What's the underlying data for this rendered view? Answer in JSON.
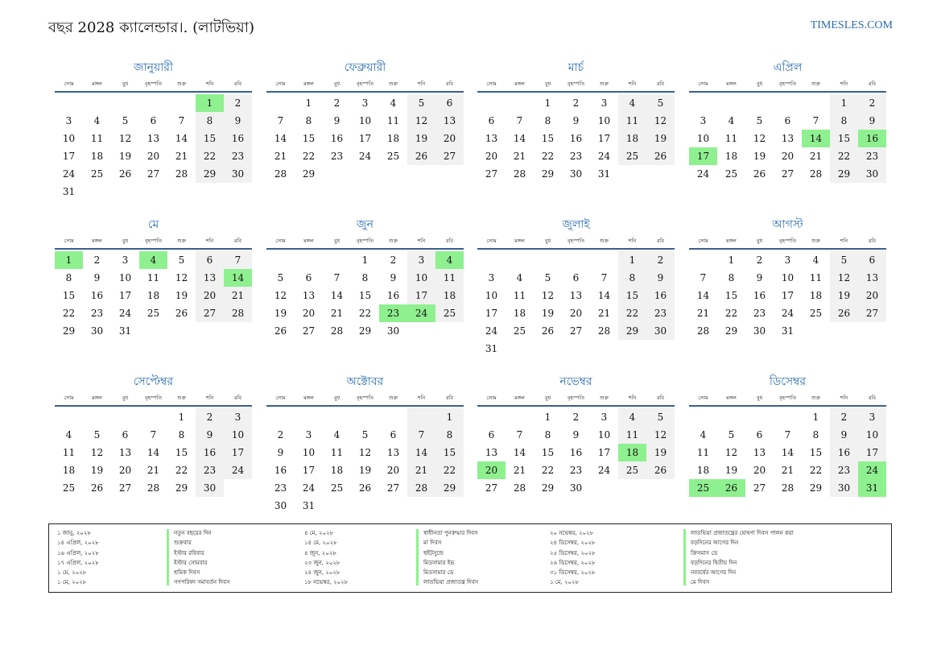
{
  "header": {
    "title": "বছর 2028 ক্যালেন্ডার।. (লাটভিয়া)",
    "site": "TIMESLES.COM"
  },
  "weekdays": [
    "সোম",
    "মঙ্গল",
    "বুধ",
    "বৃহস্পতি",
    "শুক্র",
    "শনি",
    "রবি"
  ],
  "months": [
    {
      "name": "জানুয়ারী",
      "offset": 5,
      "days": 31,
      "holidays": [
        1
      ]
    },
    {
      "name": "ফেব্রুয়ারী",
      "offset": 1,
      "days": 29,
      "holidays": []
    },
    {
      "name": "মার্চ",
      "offset": 2,
      "days": 31,
      "holidays": []
    },
    {
      "name": "এপ্রিল",
      "offset": 5,
      "days": 30,
      "holidays": [
        14,
        16,
        17
      ]
    },
    {
      "name": "মে",
      "offset": 0,
      "days": 31,
      "holidays": [
        1,
        4,
        14
      ]
    },
    {
      "name": "জুন",
      "offset": 3,
      "days": 30,
      "holidays": [
        4,
        23,
        24
      ]
    },
    {
      "name": "জুলাই",
      "offset": 5,
      "days": 31,
      "holidays": []
    },
    {
      "name": "আগস্ট",
      "offset": 1,
      "days": 31,
      "holidays": []
    },
    {
      "name": "সেপ্টেম্বর",
      "offset": 4,
      "days": 30,
      "holidays": []
    },
    {
      "name": "অক্টোবর",
      "offset": 6,
      "days": 31,
      "holidays": []
    },
    {
      "name": "নভেম্বর",
      "offset": 2,
      "days": 30,
      "holidays": [
        18,
        20
      ]
    },
    {
      "name": "ডিসেম্বর",
      "offset": 4,
      "days": 31,
      "holidays": [
        24,
        25,
        26,
        31
      ]
    }
  ],
  "legend": {
    "columns": [
      {
        "dates": [
          "১ জানু, ২০২৮",
          "১৪ এপ্রিল, ২০২৮",
          "১৬ এপ্রিল, ২০২৮",
          "১৭ এপ্রিল, ২০২৮",
          "১ মে, ২০২৮",
          "১ মে, ২০২৮"
        ],
        "names": [
          "নতুন বছরের দিন",
          "শুক্রবার",
          "ইস্টার রবিবার",
          "ইস্টার সোমবার",
          "শ্রমিক দিবস",
          "গণপরিষদ সমাবর্তন দিবস"
        ]
      },
      {
        "dates": [
          "৪ মে, ২০২৮",
          "১৪ মে, ২০২৮",
          "৪ জুন, ২০২৮",
          "২৩ জুন, ২০২৮",
          "২৪ জুন, ২০২৮",
          "১৮ নভেম্বর, ২০২৮"
        ],
        "names": [
          "স্বাধীনতা পুনরুদ্ধার দিবস",
          "মা দিবস",
          "হুইটসুন্ডে",
          "মিডসামার ইভ",
          "মিডসামার ডে",
          "লাতভিয়া প্রজাতন্ত্র দিবস"
        ]
      },
      {
        "dates": [
          "২০ নভেম্বর, ২০২৮",
          "২৪ ডিসেম্বর, ২০২৮",
          "২৫ ডিসেম্বর, ২০২৮",
          "২৬ ডিসেম্বর, ২০২৮",
          "৩১ ডিসেম্বর, ২০২৮",
          "১ মে, ২০২৮"
        ],
        "names": [
          "লাতভিয়া প্রজাতন্ত্রের ঘোষণা দিবস পালন করা",
          "বড়দিনের আগের দিন",
          "ক্রিসমাস ডে",
          "বড়দিনের দ্বিতীয় দিন",
          "নববর্ষের আগের দিন",
          "মে দিবস"
        ]
      }
    ]
  },
  "colors": {
    "accent": "#2a6db0",
    "holiday": "#8ff08f",
    "weekend": "#f1f1f1"
  }
}
